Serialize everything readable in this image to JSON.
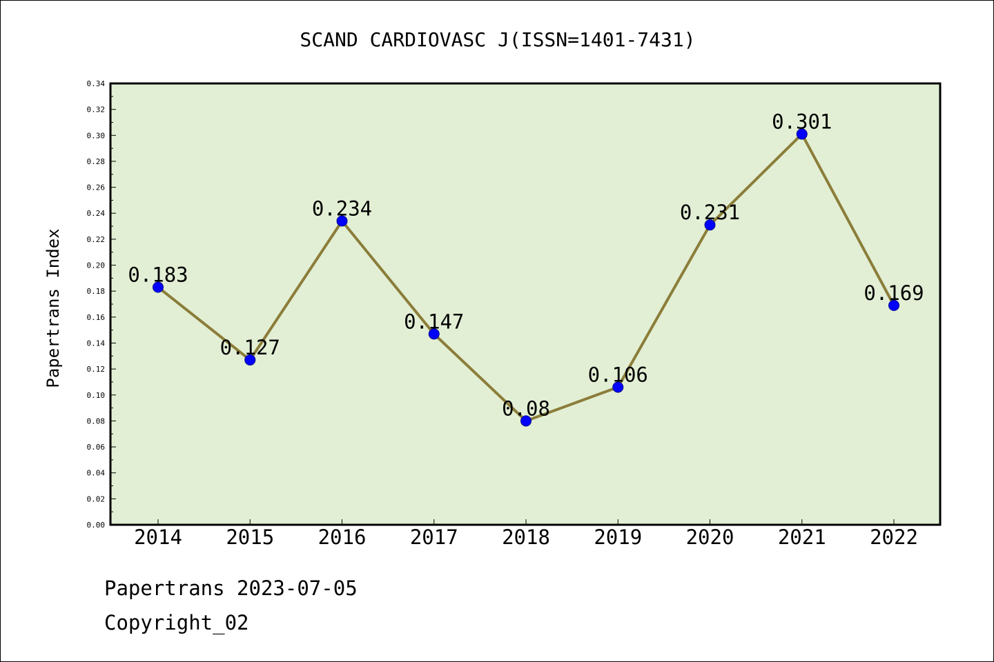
{
  "chart_data": {
    "type": "line",
    "title": "SCAND CARDIOVASC J(ISSN=1401-7431)",
    "ylabel": "Papertrans Index",
    "xlabel": "",
    "categories": [
      "2014",
      "2015",
      "2016",
      "2017",
      "2018",
      "2019",
      "2020",
      "2021",
      "2022"
    ],
    "values": [
      0.183,
      0.127,
      0.234,
      0.147,
      0.08,
      0.106,
      0.231,
      0.301,
      0.169
    ],
    "data_labels": [
      "0.183",
      "0.127",
      "0.234",
      "0.147",
      "0.08",
      "0.106",
      "0.231",
      "0.301",
      "0.169"
    ],
    "ylim": [
      0,
      0.34
    ],
    "yticks": [
      "0.00",
      "0.02",
      "0.04",
      "0.06",
      "0.08",
      "0.10",
      "0.12",
      "0.14",
      "0.16",
      "0.18",
      "0.20",
      "0.22",
      "0.24",
      "0.26",
      "0.28",
      "0.30",
      "0.32",
      "0.34"
    ],
    "grid": false,
    "colors": {
      "plot_background": "#e2efd4",
      "line": "#8b7d3a",
      "marker": "#0000ff"
    }
  },
  "footer": {
    "source": "Papertrans 2023-07-05",
    "copyright": "Copyright_02"
  }
}
